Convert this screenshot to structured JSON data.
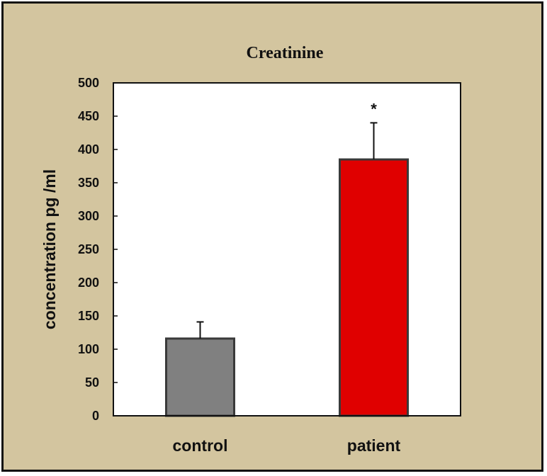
{
  "chart_data": {
    "type": "bar",
    "title": "Creatinine",
    "xlabel": "",
    "ylabel": "concentration pg /ml",
    "categories": [
      "control",
      "patient"
    ],
    "values": [
      116,
      385
    ],
    "errors": [
      25,
      55
    ],
    "significance": [
      "",
      "*"
    ],
    "colors": [
      "#808080",
      "#e00000"
    ],
    "ylim": [
      0,
      500
    ],
    "yticks": [
      0,
      50,
      100,
      150,
      200,
      250,
      300,
      350,
      400,
      450,
      500
    ],
    "grid": false,
    "legend": "none"
  }
}
